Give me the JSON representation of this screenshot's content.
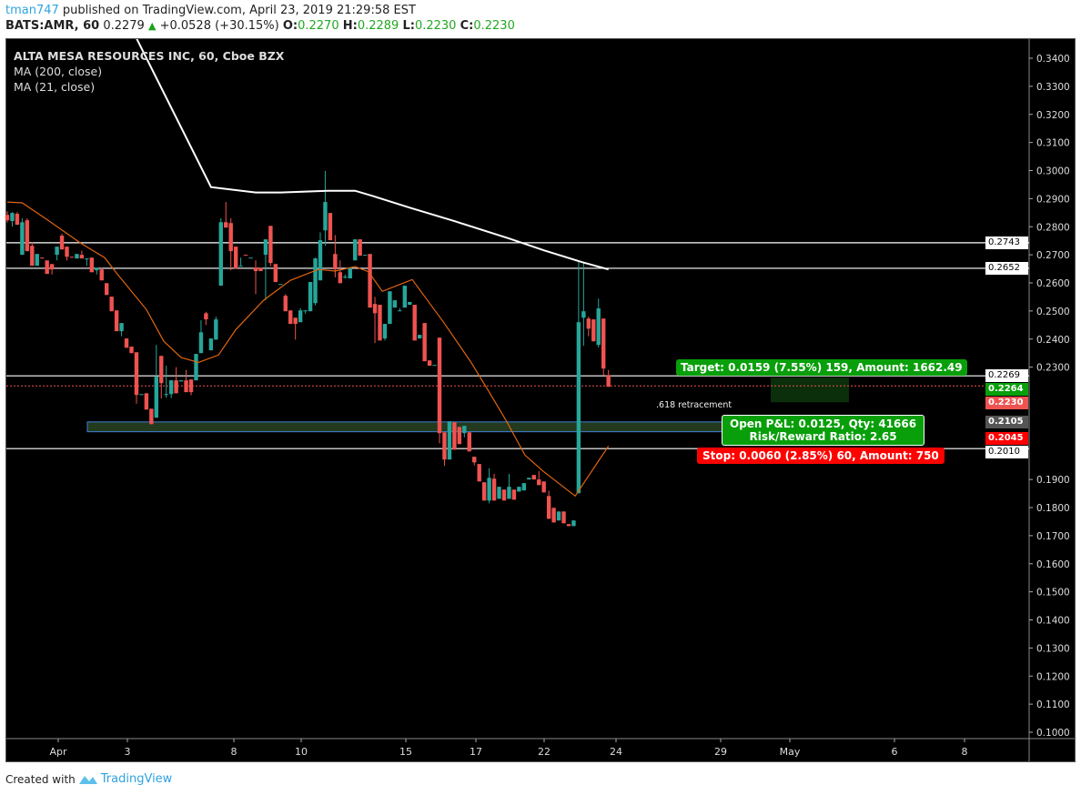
{
  "header": {
    "user": "tman747",
    "published": " published on TradingView.com, April 23, 2019 21:29:58 EST",
    "symbol": "BATS:AMR, 60",
    "last": "0.2279",
    "change": "+0.0528 (+30.15%)",
    "o_label": "O:",
    "o": "0.2270",
    "h_label": "H:",
    "h": "0.2289",
    "l_label": "L:",
    "l": "0.2230",
    "c_label": "C:",
    "c": "0.2230"
  },
  "legend": {
    "title": "ALTA MESA RESOURCES INC, 60, Cboe BZX",
    "ma200": "MA (200, close)",
    "ma21": "MA (21, close)"
  },
  "footer": {
    "created": "Created with",
    "brand": "TradingView"
  },
  "colors": {
    "up": "#26a69a",
    "down": "#ef5350",
    "ma200": "#ffffff",
    "ma21": "#e0650f",
    "background": "#000000",
    "target": "#089f0a",
    "stop": "#ff0000"
  },
  "annotations": {
    "retracement": ".618 retracement",
    "target": "Target: 0.0159 (7.55%) 159, Amount: 1662.49",
    "open_pnl": "Open P&L: 0.0125, Qty: 41666",
    "rr": "Risk/Reward Ratio: 2.65",
    "stop": "Stop: 0.0060 (2.85%) 60, Amount: 750"
  },
  "chart_data": {
    "type": "candlestick",
    "title": "ALTA MESA RESOURCES INC, 60, Cboe BZX",
    "ylim": [
      0.098,
      0.347
    ],
    "yticks": [
      "0.3400",
      "0.3300",
      "0.3200",
      "0.3100",
      "0.3000",
      "0.2900",
      "0.2800",
      "0.2700",
      "0.2600",
      "0.2500",
      "0.2400",
      "0.2300",
      "0.1900",
      "0.1800",
      "0.1700",
      "0.1600",
      "0.1500",
      "0.1400",
      "0.1300",
      "0.1200",
      "0.1100",
      "0.1000"
    ],
    "xticks": [
      "Apr",
      "3",
      "8",
      "10",
      "15",
      "17",
      "22",
      "24",
      "29",
      "May",
      "6",
      "8"
    ],
    "price_labels": [
      {
        "value": "0.2743",
        "style": "white"
      },
      {
        "value": "0.2652",
        "style": "white"
      },
      {
        "value": "0.2269",
        "style": "white"
      },
      {
        "value": "0.2264",
        "style": "green"
      },
      {
        "value": "0.2230",
        "style": "red-last"
      },
      {
        "value": "0.2105",
        "style": "gray"
      },
      {
        "value": "0.2045",
        "style": "red"
      },
      {
        "value": "0.2010",
        "style": "white"
      }
    ],
    "hlines": [
      0.2743,
      0.2652,
      0.2269,
      0.201
    ],
    "last_price_line": 0.2233,
    "retracement_zone": [
      0.207,
      0.2105
    ],
    "target_zone": [
      0.2264,
      0.2175
    ],
    "candles_ohlc": [
      [
        0.2842,
        0.2855,
        0.2815,
        0.2823
      ],
      [
        0.282,
        0.2852,
        0.28,
        0.2849
      ],
      [
        0.2846,
        0.2852,
        0.2807,
        0.2807
      ],
      [
        0.27,
        0.283,
        0.27,
        0.2816
      ],
      [
        0.2823,
        0.283,
        0.2713,
        0.2713
      ],
      [
        0.2732,
        0.2745,
        0.2661,
        0.2661
      ],
      [
        0.2661,
        0.2703,
        0.2661,
        0.2703
      ],
      [
        0.269,
        0.269,
        0.2687,
        0.2687
      ],
      [
        0.268,
        0.268,
        0.2632,
        0.2632
      ],
      [
        0.2667,
        0.2667,
        0.263,
        0.2648
      ],
      [
        0.27,
        0.2729,
        0.268,
        0.2729
      ],
      [
        0.2768,
        0.2775,
        0.2719,
        0.2719
      ],
      [
        0.2729,
        0.2729,
        0.268,
        0.2693
      ],
      [
        0.2693,
        0.2693,
        0.269,
        0.269
      ],
      [
        0.2687,
        0.2703,
        0.2687,
        0.2703
      ],
      [
        0.27,
        0.2715,
        0.2687,
        0.2687
      ],
      [
        0.2687,
        0.2687,
        0.266,
        0.2687
      ],
      [
        0.269,
        0.269,
        0.2638,
        0.2638
      ],
      [
        0.2645,
        0.2654,
        0.263,
        0.2654
      ],
      [
        0.2648,
        0.2655,
        0.2609,
        0.2609
      ],
      [
        0.2599,
        0.2599,
        0.2557,
        0.2557
      ],
      [
        0.2551,
        0.2551,
        0.2499,
        0.2499
      ],
      [
        0.2502,
        0.2502,
        0.2428,
        0.2428
      ],
      [
        0.2428,
        0.2457,
        0.241,
        0.2457
      ],
      [
        0.2402,
        0.2402,
        0.2369,
        0.2369
      ],
      [
        0.2373,
        0.2373,
        0.235,
        0.235
      ],
      [
        0.2353,
        0.2353,
        0.217,
        0.2201
      ],
      [
        0.2201,
        0.2204,
        0.2201,
        0.2204
      ],
      [
        0.2207,
        0.2207,
        0.2149,
        0.2149
      ],
      [
        0.2152,
        0.2152,
        0.2097,
        0.2097
      ],
      [
        0.212,
        0.2379,
        0.212,
        0.2266
      ],
      [
        0.234,
        0.234,
        0.2188,
        0.2243
      ],
      [
        0.2204,
        0.2305,
        0.2191,
        0.2204
      ],
      [
        0.2204,
        0.2253,
        0.219,
        0.2253
      ],
      [
        0.2253,
        0.23,
        0.2207,
        0.2207
      ],
      [
        0.2249,
        0.2253,
        0.2249,
        0.2253
      ],
      [
        0.2253,
        0.229,
        0.2211,
        0.2211
      ],
      [
        0.2256,
        0.2256,
        0.22,
        0.2211
      ],
      [
        0.2253,
        0.2347,
        0.2253,
        0.2347
      ],
      [
        0.235,
        0.2467,
        0.235,
        0.2424
      ],
      [
        0.2492,
        0.2497,
        0.245,
        0.247
      ],
      [
        0.236,
        0.2402,
        0.236,
        0.2402
      ],
      [
        0.2398,
        0.248,
        0.2398,
        0.247
      ],
      [
        0.259,
        0.283,
        0.259,
        0.2816
      ],
      [
        0.2816,
        0.2888,
        0.2797,
        0.2797
      ],
      [
        0.2813,
        0.283,
        0.2645,
        0.2713
      ],
      [
        0.2729,
        0.2729,
        0.2651,
        0.2651
      ],
      [
        0.2661,
        0.269,
        0.2661,
        0.2661
      ],
      [
        0.27,
        0.27,
        0.2697,
        0.2697
      ],
      [
        0.269,
        0.269,
        0.269,
        0.269
      ],
      [
        0.2654,
        0.268,
        0.256,
        0.2642
      ],
      [
        0.2654,
        0.2654,
        0.2642,
        0.2642
      ],
      [
        0.27,
        0.2755,
        0.2538,
        0.2755
      ],
      [
        0.2803,
        0.2803,
        0.266,
        0.2671
      ],
      [
        0.2667,
        0.2667,
        0.2603,
        0.2603
      ],
      [
        0.2596,
        0.2596,
        0.2596,
        0.2596
      ],
      [
        0.2554,
        0.256,
        0.2499,
        0.2499
      ],
      [
        0.2502,
        0.2502,
        0.2454,
        0.2454
      ],
      [
        0.2476,
        0.2476,
        0.2398,
        0.2454
      ],
      [
        0.246,
        0.251,
        0.246,
        0.2502
      ],
      [
        0.2502,
        0.2502,
        0.249,
        0.2502
      ],
      [
        0.2499,
        0.2603,
        0.2499,
        0.2603
      ],
      [
        0.2528,
        0.269,
        0.252,
        0.2687
      ],
      [
        0.2609,
        0.278,
        0.2609,
        0.2752
      ],
      [
        0.2787,
        0.2999,
        0.2732,
        0.2888
      ],
      [
        0.2849,
        0.2849,
        0.2752,
        0.2752
      ],
      [
        0.2703,
        0.277,
        0.262,
        0.2648
      ],
      [
        0.2638,
        0.268,
        0.2599,
        0.2599
      ],
      [
        0.2622,
        0.263,
        0.2615,
        0.2622
      ],
      [
        0.2616,
        0.2654,
        0.2616,
        0.2654
      ],
      [
        0.268,
        0.2755,
        0.268,
        0.2755
      ],
      [
        0.2755,
        0.2755,
        0.2697,
        0.2697
      ],
      [
        0.27,
        0.27,
        0.27,
        0.27
      ],
      [
        0.2703,
        0.2703,
        0.2512,
        0.2512
      ],
      [
        0.2525,
        0.255,
        0.2386,
        0.2492
      ],
      [
        0.2522,
        0.2522,
        0.2395,
        0.2395
      ],
      [
        0.2402,
        0.2454,
        0.2395,
        0.2454
      ],
      [
        0.2454,
        0.257,
        0.2454,
        0.257
      ],
      [
        0.2512,
        0.2538,
        0.2512,
        0.2538
      ],
      [
        0.2502,
        0.251,
        0.25,
        0.2502
      ],
      [
        0.2512,
        0.259,
        0.2512,
        0.259
      ],
      [
        0.2522,
        0.2532,
        0.2522,
        0.2532
      ],
      [
        0.2522,
        0.2522,
        0.2395,
        0.2395
      ],
      [
        0.2402,
        0.2415,
        0.2402,
        0.2415
      ],
      [
        0.2457,
        0.2457,
        0.2321,
        0.2321
      ],
      [
        0.2324,
        0.2324,
        0.2305,
        0.2305
      ],
      [
        0.2305,
        0.2308,
        0.2305,
        0.2308
      ],
      [
        0.2405,
        0.2405,
        0.2029,
        0.2065
      ],
      [
        0.2068,
        0.2068,
        0.1948,
        0.1971
      ],
      [
        0.1971,
        0.2107,
        0.1971,
        0.2107
      ],
      [
        0.2104,
        0.2104,
        0.2006,
        0.2006
      ],
      [
        0.2087,
        0.2087,
        0.2026,
        0.2026
      ],
      [
        0.2065,
        0.2091,
        0.205,
        0.2091
      ],
      [
        0.2068,
        0.2068,
        0.2,
        0.2
      ],
      [
        0.1981,
        0.1981,
        0.195,
        0.1961
      ],
      [
        0.1955,
        0.1955,
        0.1893,
        0.1893
      ],
      [
        0.189,
        0.189,
        0.1825,
        0.1825
      ],
      [
        0.1825,
        0.194,
        0.1815,
        0.1906
      ],
      [
        0.1903,
        0.192,
        0.1825,
        0.1825
      ],
      [
        0.1831,
        0.1874,
        0.1831,
        0.1874
      ],
      [
        0.1864,
        0.1864,
        0.1825,
        0.1825
      ],
      [
        0.1831,
        0.192,
        0.1831,
        0.1874
      ],
      [
        0.1864,
        0.1864,
        0.1828,
        0.1828
      ],
      [
        0.1857,
        0.1874,
        0.1857,
        0.1874
      ],
      [
        0.1861,
        0.1887,
        0.1861,
        0.1887
      ],
      [
        0.19,
        0.1906,
        0.19,
        0.1906
      ],
      [
        0.1916,
        0.1916,
        0.19,
        0.19
      ],
      [
        0.19,
        0.193,
        0.188,
        0.188
      ],
      [
        0.1893,
        0.1893,
        0.1854,
        0.1854
      ],
      [
        0.1841,
        0.186,
        0.176,
        0.176
      ],
      [
        0.1799,
        0.1799,
        0.1747,
        0.1747
      ],
      [
        0.1754,
        0.1786,
        0.1754,
        0.1786
      ],
      [
        0.1786,
        0.1786,
        0.1744,
        0.1744
      ],
      [
        0.1741,
        0.1741,
        0.1734,
        0.1734
      ],
      [
        0.1734,
        0.1754,
        0.1734,
        0.1754
      ],
      [
        0.1851,
        0.2674,
        0.1851,
        0.246
      ],
      [
        0.2476,
        0.2674,
        0.2376,
        0.2499
      ],
      [
        0.2473,
        0.248,
        0.241,
        0.2437
      ],
      [
        0.247,
        0.247,
        0.2392,
        0.2392
      ],
      [
        0.2379,
        0.2544,
        0.237,
        0.2509
      ],
      [
        0.2473,
        0.2473,
        0.227,
        0.2295
      ],
      [
        0.2272,
        0.229,
        0.223,
        0.223
      ]
    ],
    "ma200_points": [
      [
        26,
        0.3471
      ],
      [
        41,
        0.2941
      ],
      [
        50,
        0.2922
      ],
      [
        55,
        0.2922
      ],
      [
        64.5,
        0.2928
      ],
      [
        70,
        0.2928
      ],
      [
        73.6,
        0.2909
      ],
      [
        81,
        0.2868
      ],
      [
        90,
        0.282
      ],
      [
        101,
        0.2758
      ],
      [
        108,
        0.2716
      ],
      [
        115.7,
        0.2674
      ],
      [
        121,
        0.2648
      ]
    ],
    "ma21_points": [
      [
        0,
        0.2888
      ],
      [
        3,
        0.2885
      ],
      [
        7.7,
        0.2829
      ],
      [
        15,
        0.2739
      ],
      [
        19.6,
        0.269
      ],
      [
        22,
        0.2635
      ],
      [
        28,
        0.2505
      ],
      [
        31.5,
        0.2392
      ],
      [
        35,
        0.2334
      ],
      [
        38.5,
        0.2317
      ],
      [
        42.5,
        0.2343
      ],
      [
        46,
        0.2434
      ],
      [
        51.6,
        0.2538
      ],
      [
        57,
        0.2609
      ],
      [
        62.6,
        0.2648
      ],
      [
        66,
        0.2642
      ],
      [
        70,
        0.2658
      ],
      [
        72.7,
        0.264
      ],
      [
        75.5,
        0.257
      ],
      [
        81.5,
        0.2612
      ],
      [
        87.7,
        0.2463
      ],
      [
        93.2,
        0.2321
      ],
      [
        96.9,
        0.2214
      ],
      [
        100.5,
        0.2107
      ],
      [
        104.2,
        0.1987
      ],
      [
        107.9,
        0.1929
      ],
      [
        114.3,
        0.1841
      ],
      [
        121,
        0.2019
      ]
    ]
  }
}
